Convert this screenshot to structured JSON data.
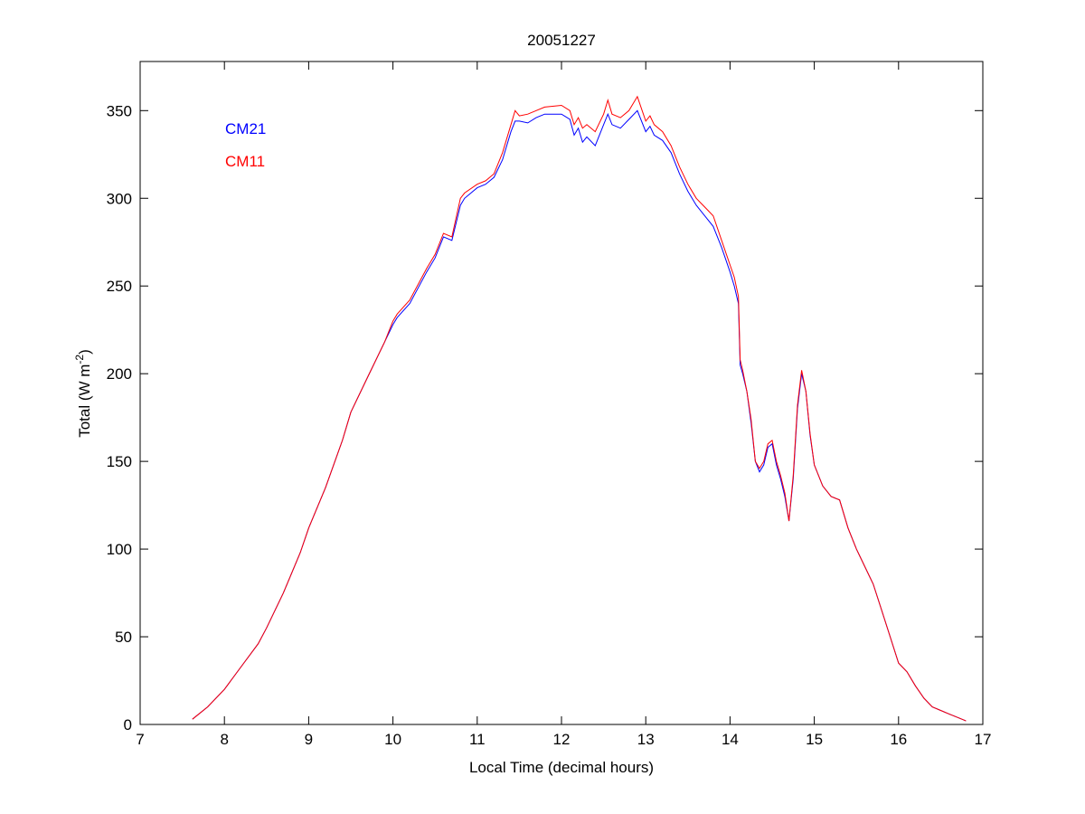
{
  "chart_data": {
    "type": "line",
    "title": "20051227",
    "xlabel": "Local Time (decimal hours)",
    "ylabel": "Total (W m",
    "ylabel_sup": "-2",
    "ylabel_end": ")",
    "xlim": [
      7,
      17
    ],
    "ylim": [
      0,
      378
    ],
    "xticks": [
      7,
      8,
      9,
      10,
      11,
      12,
      13,
      14,
      15,
      16,
      17
    ],
    "yticks": [
      0,
      50,
      100,
      150,
      200,
      250,
      300,
      350
    ],
    "grid": false,
    "legend_placement": "top-left",
    "series": [
      {
        "name": "CM21",
        "color": "#0000ff",
        "x": [
          7.62,
          7.8,
          8.0,
          8.2,
          8.4,
          8.5,
          8.7,
          8.9,
          9.0,
          9.2,
          9.4,
          9.5,
          9.7,
          9.9,
          10.0,
          10.05,
          10.2,
          10.4,
          10.5,
          10.6,
          10.7,
          10.8,
          10.85,
          11.0,
          11.1,
          11.2,
          11.3,
          11.4,
          11.45,
          11.5,
          11.6,
          11.7,
          11.8,
          12.0,
          12.1,
          12.15,
          12.2,
          12.25,
          12.3,
          12.4,
          12.5,
          12.55,
          12.6,
          12.7,
          12.8,
          12.9,
          13.0,
          13.05,
          13.1,
          13.2,
          13.3,
          13.4,
          13.5,
          13.6,
          13.7,
          13.8,
          13.9,
          14.0,
          14.05,
          14.1,
          14.12,
          14.15,
          14.2,
          14.25,
          14.3,
          14.35,
          14.4,
          14.45,
          14.5,
          14.55,
          14.6,
          14.65,
          14.7,
          14.75,
          14.8,
          14.85,
          14.9,
          14.95,
          15.0,
          15.1,
          15.2,
          15.3,
          15.4,
          15.5,
          15.6,
          15.7,
          15.8,
          15.9,
          16.0,
          16.1,
          16.2,
          16.3,
          16.4,
          16.5,
          16.6,
          16.7,
          16.8
        ],
        "y": [
          3,
          10,
          20,
          33,
          46,
          55,
          75,
          98,
          112,
          135,
          162,
          178,
          198,
          218,
          228,
          232,
          240,
          258,
          266,
          278,
          276,
          296,
          300,
          306,
          308,
          312,
          322,
          338,
          344,
          344,
          343,
          346,
          348,
          348,
          345,
          336,
          340,
          332,
          335,
          330,
          342,
          348,
          342,
          340,
          345,
          350,
          338,
          341,
          336,
          333,
          326,
          314,
          304,
          296,
          290,
          284,
          272,
          258,
          250,
          240,
          205,
          200,
          190,
          172,
          150,
          144,
          148,
          158,
          160,
          148,
          140,
          130,
          116,
          140,
          180,
          200,
          190,
          165,
          148,
          136,
          130,
          128,
          112,
          100,
          90,
          80,
          65,
          50,
          35,
          30,
          22,
          15,
          10,
          8,
          6,
          4,
          2
        ]
      },
      {
        "name": "CM11",
        "color": "#ff0000",
        "x": [
          7.62,
          7.8,
          8.0,
          8.2,
          8.4,
          8.5,
          8.7,
          8.9,
          9.0,
          9.2,
          9.4,
          9.5,
          9.7,
          9.9,
          10.0,
          10.05,
          10.2,
          10.4,
          10.5,
          10.6,
          10.7,
          10.8,
          10.85,
          11.0,
          11.1,
          11.2,
          11.3,
          11.4,
          11.45,
          11.5,
          11.6,
          11.7,
          11.8,
          12.0,
          12.1,
          12.15,
          12.2,
          12.25,
          12.3,
          12.4,
          12.5,
          12.55,
          12.6,
          12.7,
          12.8,
          12.9,
          13.0,
          13.05,
          13.1,
          13.2,
          13.3,
          13.4,
          13.5,
          13.6,
          13.7,
          13.8,
          13.9,
          14.0,
          14.05,
          14.1,
          14.12,
          14.15,
          14.2,
          14.25,
          14.3,
          14.35,
          14.4,
          14.45,
          14.5,
          14.55,
          14.6,
          14.65,
          14.7,
          14.75,
          14.8,
          14.85,
          14.9,
          14.95,
          15.0,
          15.1,
          15.2,
          15.3,
          15.4,
          15.5,
          15.6,
          15.7,
          15.8,
          15.9,
          16.0,
          16.1,
          16.2,
          16.3,
          16.4,
          16.5,
          16.6,
          16.7,
          16.8
        ],
        "y": [
          3,
          10,
          20,
          33,
          46,
          55,
          75,
          98,
          112,
          135,
          162,
          178,
          198,
          218,
          230,
          234,
          242,
          260,
          268,
          280,
          278,
          300,
          303,
          308,
          310,
          314,
          326,
          342,
          350,
          347,
          348,
          350,
          352,
          353,
          350,
          342,
          346,
          340,
          342,
          338,
          348,
          356,
          348,
          346,
          350,
          358,
          344,
          347,
          342,
          338,
          330,
          318,
          308,
          300,
          295,
          290,
          276,
          262,
          255,
          244,
          208,
          202,
          190,
          174,
          150,
          146,
          150,
          160,
          162,
          150,
          142,
          132,
          116,
          142,
          182,
          202,
          190,
          166,
          148,
          136,
          130,
          128,
          112,
          100,
          90,
          80,
          65,
          50,
          35,
          30,
          22,
          15,
          10,
          8,
          6,
          4,
          2
        ]
      }
    ]
  }
}
